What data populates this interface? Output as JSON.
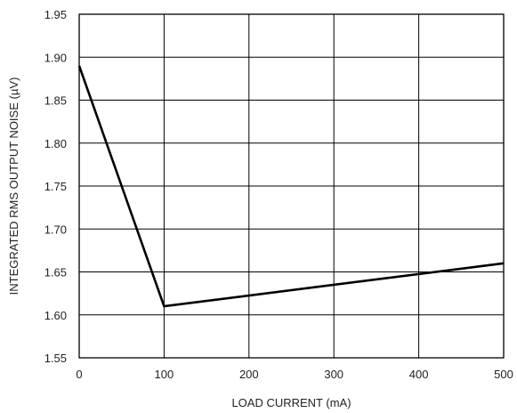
{
  "chart_data": {
    "type": "line",
    "xlabel": "LOAD CURRENT (mA)",
    "ylabel": "INTEGRATED RMS OUTPUT NOISE  (µV)",
    "xlim": [
      0,
      500
    ],
    "ylim": [
      1.55,
      1.95
    ],
    "xticks": [
      "0",
      "100",
      "200",
      "300",
      "400",
      "500"
    ],
    "yticks": [
      "1.55",
      "1.60",
      "1.65",
      "1.70",
      "1.75",
      "1.80",
      "1.85",
      "1.90",
      "1.95"
    ],
    "grid": true,
    "series": [
      {
        "x": [
          0,
          100,
          500
        ],
        "y": [
          1.89,
          1.61,
          1.66
        ]
      }
    ],
    "colors": {
      "line": "#000000",
      "grid": "#000000",
      "background": "#ffffff"
    }
  }
}
